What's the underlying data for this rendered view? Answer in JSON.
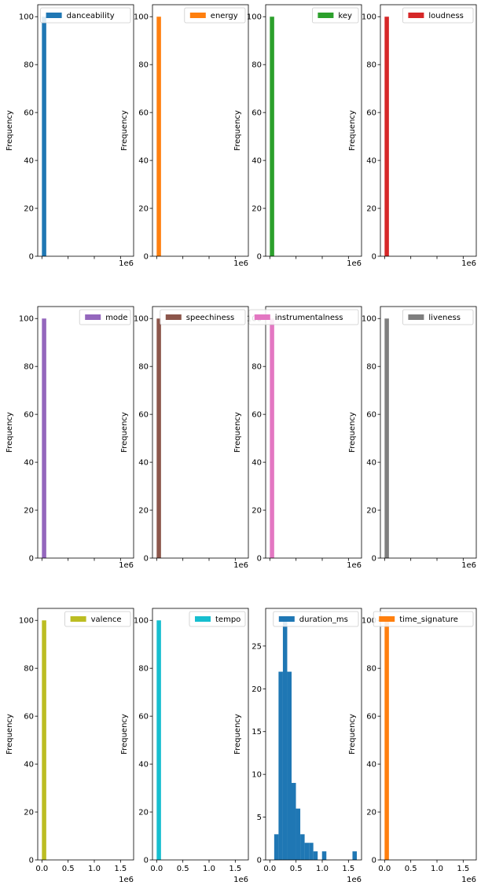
{
  "chart_data": {
    "type": "bar",
    "layout": "3x4 grid of histograms",
    "shared_x_range": [
      -80000,
      1750000
    ],
    "x_offset_label": "1e6",
    "x_ticks": [
      0,
      0.5,
      1.0,
      1.5
    ],
    "x_tick_labels": [
      "0.0",
      "0.5",
      "1.0",
      "1.5"
    ],
    "ylabel": "Frequency",
    "legend_placement": "upper right",
    "subplots": [
      {
        "name": "danceability",
        "color": "#1f77b4",
        "ylim": [
          0,
          105
        ],
        "yticks": [
          0,
          20,
          40,
          60,
          80,
          100
        ],
        "bins": [
          {
            "x0": 0,
            "x1": 83000,
            "count": 100
          }
        ]
      },
      {
        "name": "energy",
        "color": "#ff7f0e",
        "ylim": [
          0,
          105
        ],
        "yticks": [
          0,
          20,
          40,
          60,
          80,
          100
        ],
        "bins": [
          {
            "x0": 0,
            "x1": 83000,
            "count": 100
          }
        ]
      },
      {
        "name": "key",
        "color": "#2ca02c",
        "ylim": [
          0,
          105
        ],
        "yticks": [
          0,
          20,
          40,
          60,
          80,
          100
        ],
        "bins": [
          {
            "x0": 0,
            "x1": 83000,
            "count": 100
          }
        ]
      },
      {
        "name": "loudness",
        "color": "#d62728",
        "ylim": [
          0,
          105
        ],
        "yticks": [
          0,
          20,
          40,
          60,
          80,
          100
        ],
        "bins": [
          {
            "x0": 0,
            "x1": 83000,
            "count": 100
          }
        ]
      },
      {
        "name": "mode",
        "color": "#9467bd",
        "ylim": [
          0,
          105
        ],
        "yticks": [
          0,
          20,
          40,
          60,
          80,
          100
        ],
        "bins": [
          {
            "x0": 0,
            "x1": 83000,
            "count": 100
          }
        ]
      },
      {
        "name": "speechiness",
        "color": "#8c564b",
        "ylim": [
          0,
          105
        ],
        "yticks": [
          0,
          20,
          40,
          60,
          80,
          100
        ],
        "bins": [
          {
            "x0": 0,
            "x1": 83000,
            "count": 100
          }
        ]
      },
      {
        "name": "instrumentalness",
        "color": "#e377c2",
        "ylim": [
          0,
          105
        ],
        "yticks": [
          0,
          20,
          40,
          60,
          80,
          100
        ],
        "bins": [
          {
            "x0": 0,
            "x1": 83000,
            "count": 100
          }
        ]
      },
      {
        "name": "liveness",
        "color": "#7f7f7f",
        "ylim": [
          0,
          105
        ],
        "yticks": [
          0,
          20,
          40,
          60,
          80,
          100
        ],
        "bins": [
          {
            "x0": 0,
            "x1": 83000,
            "count": 100
          }
        ]
      },
      {
        "name": "valence",
        "color": "#bcbd22",
        "ylim": [
          0,
          105
        ],
        "yticks": [
          0,
          20,
          40,
          60,
          80,
          100
        ],
        "bins": [
          {
            "x0": 0,
            "x1": 83000,
            "count": 100
          }
        ]
      },
      {
        "name": "tempo",
        "color": "#17becf",
        "ylim": [
          0,
          105
        ],
        "yticks": [
          0,
          20,
          40,
          60,
          80,
          100
        ],
        "bins": [
          {
            "x0": 0,
            "x1": 83000,
            "count": 100
          }
        ]
      },
      {
        "name": "duration_ms",
        "color": "#1f77b4",
        "ylim": [
          0,
          29.4
        ],
        "yticks": [
          0,
          5,
          10,
          15,
          20,
          25
        ],
        "bins": [
          {
            "x0": 0,
            "x1": 83000,
            "count": 0
          },
          {
            "x0": 83000,
            "x1": 166000,
            "count": 3
          },
          {
            "x0": 166000,
            "x1": 249000,
            "count": 22
          },
          {
            "x0": 249000,
            "x1": 332000,
            "count": 28
          },
          {
            "x0": 332000,
            "x1": 415000,
            "count": 22
          },
          {
            "x0": 415000,
            "x1": 498000,
            "count": 9
          },
          {
            "x0": 498000,
            "x1": 581000,
            "count": 6
          },
          {
            "x0": 581000,
            "x1": 664000,
            "count": 3
          },
          {
            "x0": 664000,
            "x1": 747000,
            "count": 2
          },
          {
            "x0": 747000,
            "x1": 830000,
            "count": 2
          },
          {
            "x0": 830000,
            "x1": 913000,
            "count": 1
          },
          {
            "x0": 913000,
            "x1": 996000,
            "count": 0
          },
          {
            "x0": 996000,
            "x1": 1079000,
            "count": 1
          },
          {
            "x0": 1079000,
            "x1": 1162000,
            "count": 0
          },
          {
            "x0": 1162000,
            "x1": 1245000,
            "count": 0
          },
          {
            "x0": 1245000,
            "x1": 1328000,
            "count": 0
          },
          {
            "x0": 1328000,
            "x1": 1411000,
            "count": 0
          },
          {
            "x0": 1411000,
            "x1": 1494000,
            "count": 0
          },
          {
            "x0": 1494000,
            "x1": 1577000,
            "count": 0
          },
          {
            "x0": 1577000,
            "x1": 1660000,
            "count": 1
          }
        ]
      },
      {
        "name": "time_signature",
        "color": "#ff7f0e",
        "ylim": [
          0,
          105
        ],
        "yticks": [
          0,
          20,
          40,
          60,
          80,
          100
        ],
        "bins": [
          {
            "x0": 0,
            "x1": 83000,
            "count": 100
          }
        ]
      }
    ]
  }
}
